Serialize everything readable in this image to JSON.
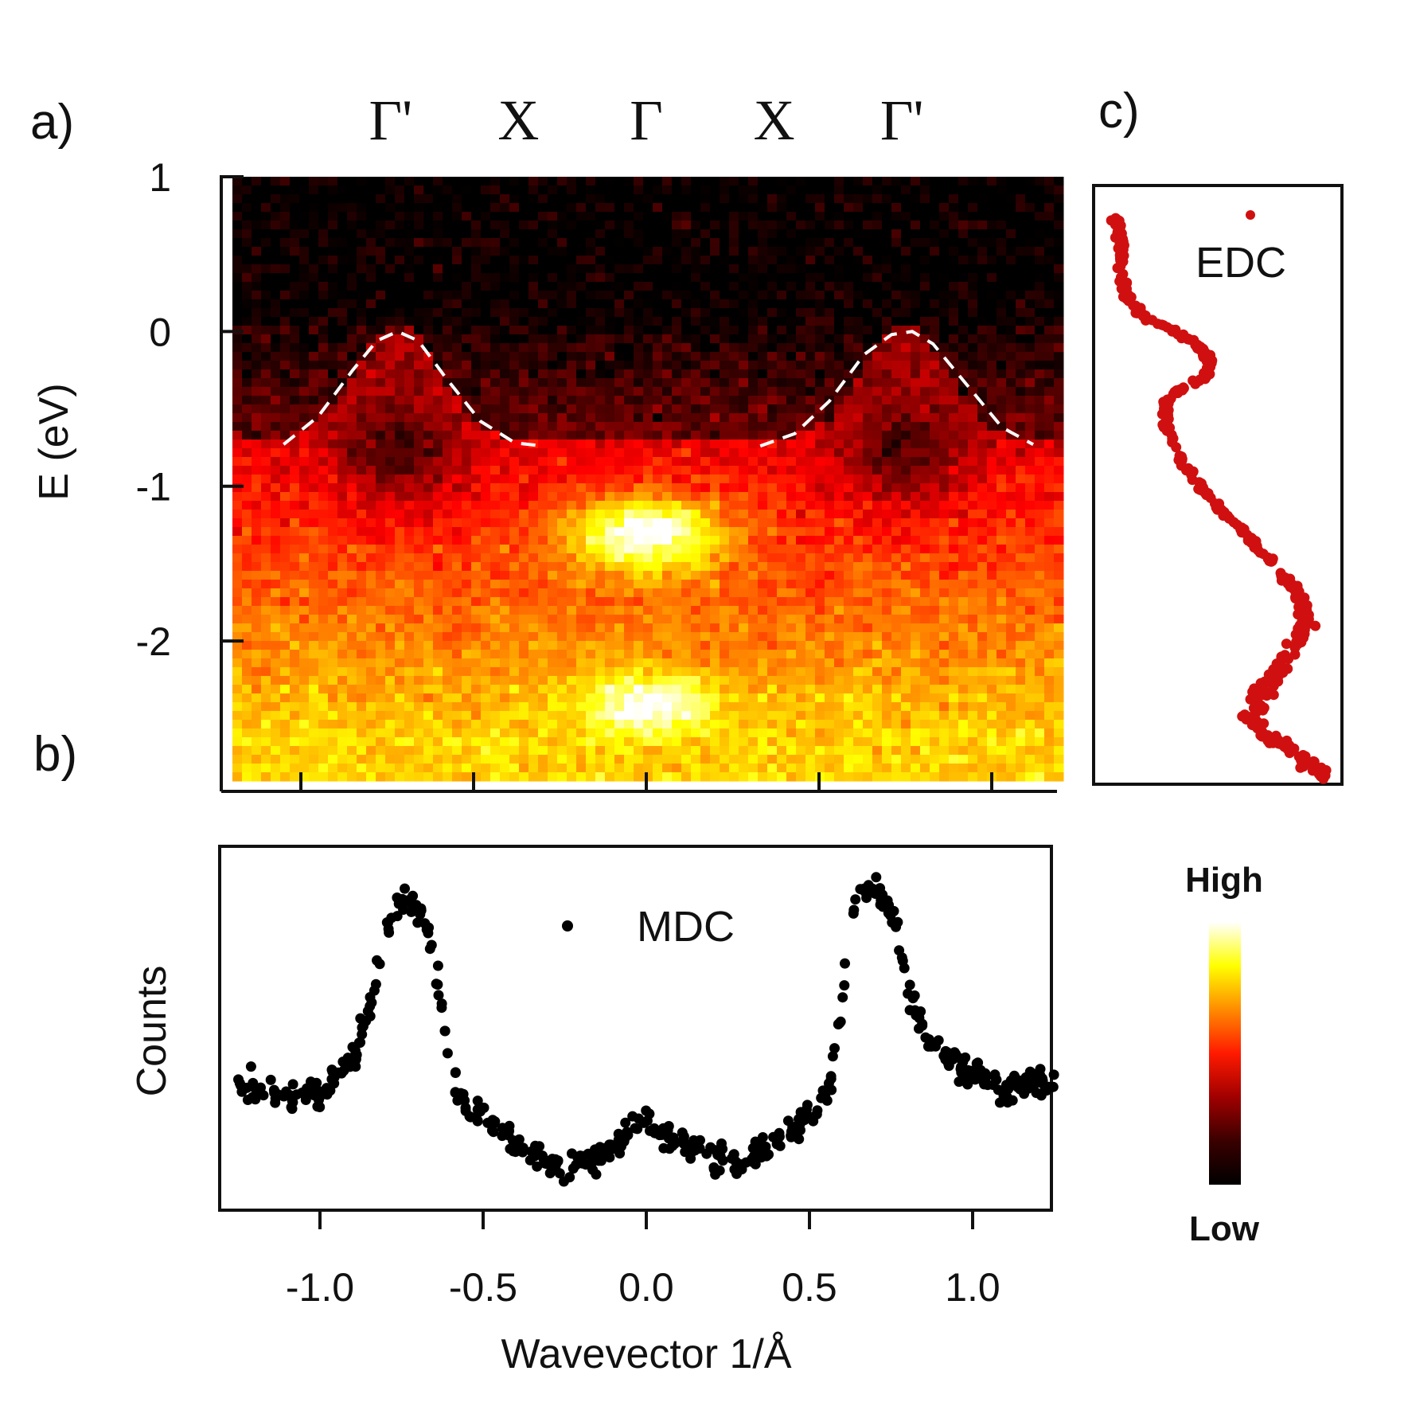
{
  "panels": {
    "a": {
      "label": "a)"
    },
    "b": {
      "label": "b)"
    },
    "c": {
      "label": "c)"
    }
  },
  "symmetry_points": [
    "Γ'",
    "X",
    "Γ",
    "X",
    "Γ'"
  ],
  "colorbar": {
    "high_label": "High",
    "low_label": "Low",
    "colors": [
      "#000000",
      "#3a0000",
      "#a00000",
      "#ff1a00",
      "#ff8c00",
      "#ffff00",
      "#ffffff"
    ]
  },
  "chart_data": [
    {
      "panel": "a",
      "type": "heatmap",
      "title": "",
      "xlabel": "",
      "ylabel": "E (eV)",
      "xlim": [
        -1.25,
        1.25
      ],
      "ylim": [
        -2.9,
        1.0
      ],
      "yticks": [
        1,
        0,
        -1,
        -2
      ],
      "ytick_labels": [
        "1",
        "0",
        "-1",
        "-2"
      ],
      "xticks": [
        -1.0,
        -0.5,
        0.0,
        0.5,
        1.0
      ],
      "colormap": "hot",
      "features": [
        {
          "name": "dispersion_dashed",
          "style": "white dashed",
          "x": [
            -1.05,
            -0.95,
            -0.85,
            -0.78,
            -0.72,
            -0.66,
            -0.58,
            -0.48,
            -0.38,
            -0.3
          ],
          "y": [
            -0.73,
            -0.55,
            -0.25,
            -0.06,
            0.0,
            -0.06,
            -0.3,
            -0.58,
            -0.72,
            -0.74
          ]
        },
        {
          "name": "dispersion_dashed",
          "style": "white dashed",
          "x": [
            0.33,
            0.43,
            0.53,
            0.63,
            0.71,
            0.77,
            0.83,
            0.93,
            1.03,
            1.12
          ],
          "y": [
            -0.74,
            -0.66,
            -0.45,
            -0.15,
            -0.02,
            0.0,
            -0.08,
            -0.35,
            -0.62,
            -0.73
          ]
        },
        {
          "name": "intensity_max_1",
          "x": 0.0,
          "y": -1.3
        },
        {
          "name": "intensity_max_2",
          "x": 0.0,
          "y": -2.4
        }
      ]
    },
    {
      "panel": "b",
      "type": "scatter",
      "title": "",
      "xlabel": "Wavevector 1/Å",
      "ylabel": "Counts",
      "xlim": [
        -1.28,
        1.28
      ],
      "ylim": [
        0.0,
        1.0
      ],
      "xticks": [
        -1.0,
        -0.5,
        0.0,
        0.5,
        1.0
      ],
      "xtick_labels": [
        "-1.0",
        "-0.5",
        "0.0",
        "0.5",
        "1.0"
      ],
      "grid": false,
      "legend": {
        "entries": [
          "MDC"
        ],
        "position": "top-center"
      },
      "series": [
        {
          "name": "MDC",
          "color": "#000000",
          "x": [
            -1.25,
            -1.2,
            -1.15,
            -1.1,
            -1.05,
            -1.0,
            -0.95,
            -0.9,
            -0.85,
            -0.8,
            -0.77,
            -0.74,
            -0.71,
            -0.68,
            -0.65,
            -0.62,
            -0.6,
            -0.58,
            -0.55,
            -0.5,
            -0.45,
            -0.4,
            -0.35,
            -0.3,
            -0.25,
            -0.2,
            -0.15,
            -0.1,
            -0.05,
            0.0,
            0.05,
            0.1,
            0.15,
            0.2,
            0.25,
            0.3,
            0.35,
            0.4,
            0.45,
            0.5,
            0.55,
            0.58,
            0.6,
            0.62,
            0.65,
            0.68,
            0.71,
            0.74,
            0.77,
            0.8,
            0.85,
            0.9,
            0.95,
            1.0,
            1.05,
            1.1,
            1.15,
            1.2,
            1.25
          ],
          "y": [
            0.34,
            0.32,
            0.31,
            0.3,
            0.29,
            0.3,
            0.37,
            0.41,
            0.55,
            0.82,
            0.88,
            0.91,
            0.9,
            0.86,
            0.72,
            0.52,
            0.38,
            0.3,
            0.26,
            0.22,
            0.18,
            0.14,
            0.12,
            0.08,
            0.06,
            0.08,
            0.1,
            0.14,
            0.18,
            0.2,
            0.18,
            0.16,
            0.12,
            0.1,
            0.09,
            0.1,
            0.12,
            0.15,
            0.19,
            0.24,
            0.28,
            0.42,
            0.6,
            0.8,
            0.92,
            0.95,
            0.93,
            0.9,
            0.8,
            0.62,
            0.5,
            0.44,
            0.4,
            0.36,
            0.33,
            0.31,
            0.33,
            0.34,
            0.32
          ]
        }
      ]
    },
    {
      "panel": "c",
      "type": "scatter",
      "title": "",
      "xlabel": "",
      "ylabel": "",
      "legend": {
        "entries": [
          "EDC"
        ],
        "position": "top-right"
      },
      "series": [
        {
          "name": "EDC",
          "color": "#d01010",
          "energy": [
            0.85,
            0.75,
            0.6,
            0.45,
            0.3,
            0.2,
            0.1,
            0.02,
            -0.1,
            -0.2,
            -0.3,
            -0.38,
            -0.5,
            -0.6,
            -0.7,
            -0.8,
            -0.9,
            -1.0,
            -1.1,
            -1.2,
            -1.3,
            -1.4,
            -1.5,
            -1.6,
            -1.7,
            -1.8,
            -1.9,
            -2.0,
            -2.1,
            -2.2,
            -2.3,
            -2.4,
            -2.5,
            -2.6,
            -2.7,
            -2.8
          ],
          "intensity": [
            0.05,
            0.06,
            0.07,
            0.08,
            0.1,
            0.16,
            0.3,
            0.4,
            0.48,
            0.45,
            0.32,
            0.27,
            0.27,
            0.3,
            0.33,
            0.37,
            0.42,
            0.48,
            0.55,
            0.62,
            0.68,
            0.75,
            0.8,
            0.86,
            0.88,
            0.9,
            0.86,
            0.82,
            0.78,
            0.72,
            0.68,
            0.65,
            0.7,
            0.82,
            0.92,
            0.96
          ]
        }
      ]
    }
  ]
}
